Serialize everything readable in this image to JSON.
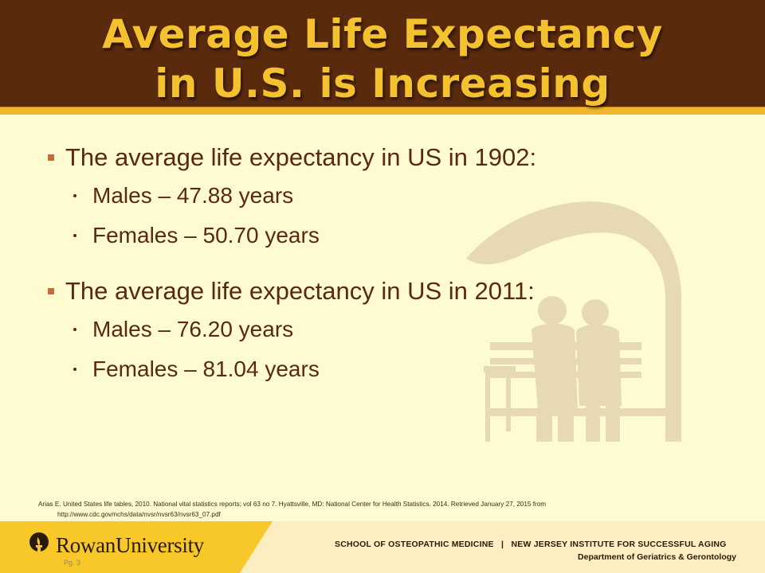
{
  "title": {
    "line1": "Average Life Expectancy",
    "line2": "in U.S. is Increasing"
  },
  "sections": [
    {
      "heading": "The average life expectancy in US in 1902:",
      "items": [
        "Males – 47.88 years",
        "Females – 50.70 years"
      ]
    },
    {
      "heading": "The average life expectancy in US in 2011:",
      "items": [
        "Males – 76.20 years",
        "Females – 81.04 years"
      ]
    }
  ],
  "citation": {
    "text": "Arias E. United States life tables, 2010. National vital statistics reports; vol 63 no 7. Hyattsville, MD: National Center for Health Statistics. 2014. Retrieved January 27, 2015 from",
    "url": "http://www.cdc.gov/nchs/data/nvsr/nvsr63/nvsr63_07.pdf"
  },
  "footer": {
    "university": "RowanUniversity",
    "page_label": "Pg. 3",
    "school": "SCHOOL OF OSTEOPATHIC MEDICINE   |   NEW JERSEY INSTITUTE FOR SUCCESSFUL AGING",
    "department": "Department of Geriatrics & Gerontology"
  },
  "colors": {
    "title_band": "#5a2a0d",
    "title_text": "#f5c22f",
    "accent_rule": "#f1b52e",
    "background": "#fffbd0",
    "body_text": "#5a2a0d",
    "artwork": "#e6d9b4"
  },
  "icons": {
    "logo": "torch-icon",
    "artwork": "elderly-couple-bench-illustration"
  }
}
